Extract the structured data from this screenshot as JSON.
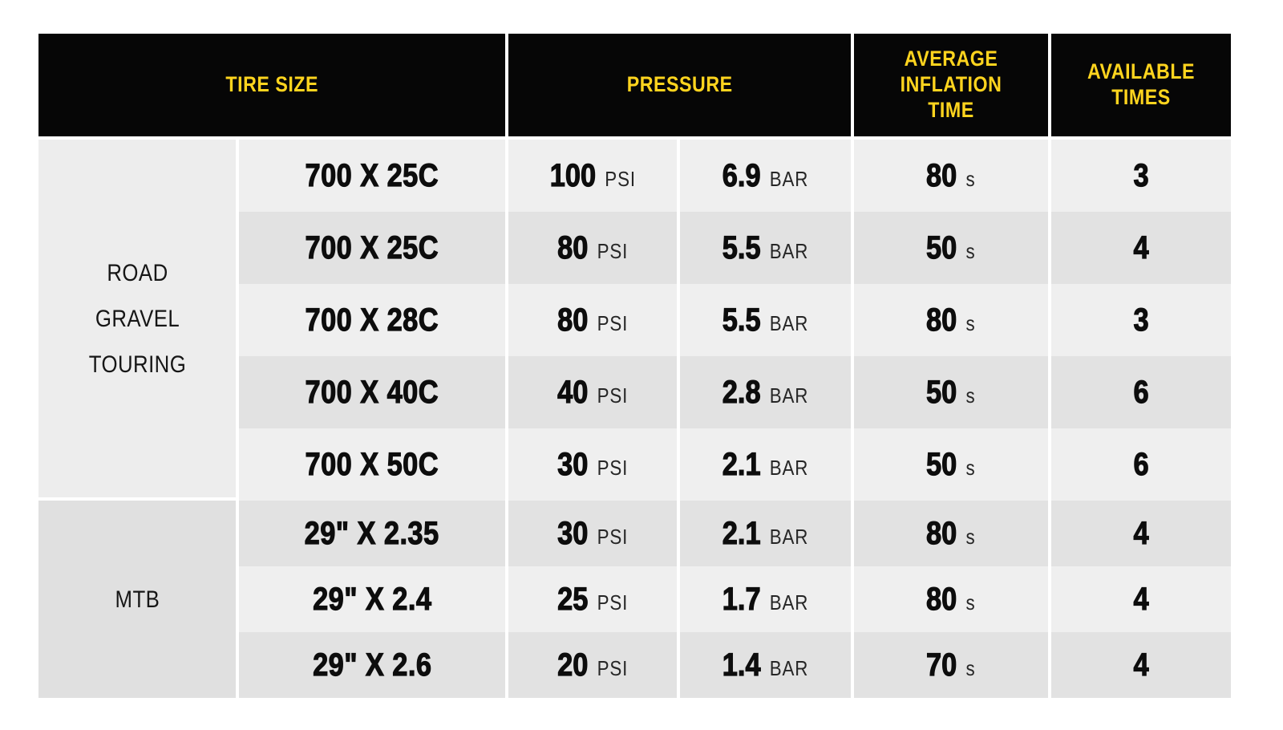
{
  "chart_data": {
    "type": "table",
    "headers": {
      "tire_size": "TIRE SIZE",
      "pressure": "PRESSURE",
      "inflation": "AVERAGE INFLATION TIME",
      "available": "AVAILABLE TIMES"
    },
    "units": {
      "psi": "PSI",
      "bar": "BAR",
      "seconds": "s"
    },
    "groups": [
      {
        "label": "ROAD GRAVEL TOURING",
        "rows_covered": [
          1,
          5
        ]
      },
      {
        "label": "MTB",
        "rows_covered": [
          6,
          8
        ]
      }
    ],
    "rows": [
      {
        "size": "700 X 25C",
        "psi": 100,
        "bar": 6.9,
        "inflation_s": 80,
        "available": 3
      },
      {
        "size": "700 X 25C",
        "psi": 80,
        "bar": 5.5,
        "inflation_s": 50,
        "available": 4
      },
      {
        "size": "700 X 28C",
        "psi": 80,
        "bar": 5.5,
        "inflation_s": 80,
        "available": 3
      },
      {
        "size": "700 X 40C",
        "psi": 40,
        "bar": 2.8,
        "inflation_s": 50,
        "available": 6
      },
      {
        "size": "700 X 50C",
        "psi": 30,
        "bar": 2.1,
        "inflation_s": 50,
        "available": 6
      },
      {
        "size": "29\" X 2.35",
        "psi": 30,
        "bar": 2.1,
        "inflation_s": 80,
        "available": 4
      },
      {
        "size": "29\" X 2.4",
        "psi": 25,
        "bar": 1.7,
        "inflation_s": 80,
        "available": 4
      },
      {
        "size": "29\" X 2.6",
        "psi": 20,
        "bar": 1.4,
        "inflation_s": 70,
        "available": 4
      }
    ]
  },
  "colors": {
    "header_bg": "#060606",
    "header_text": "#ffd41e",
    "row_light": "#efefef",
    "row_dark": "#e2e2e2",
    "group_road_bg": "#ededed",
    "group_mtb_bg": "#e0e0e0",
    "value_text": "#0d0d0d",
    "unit_text": "#262626"
  }
}
